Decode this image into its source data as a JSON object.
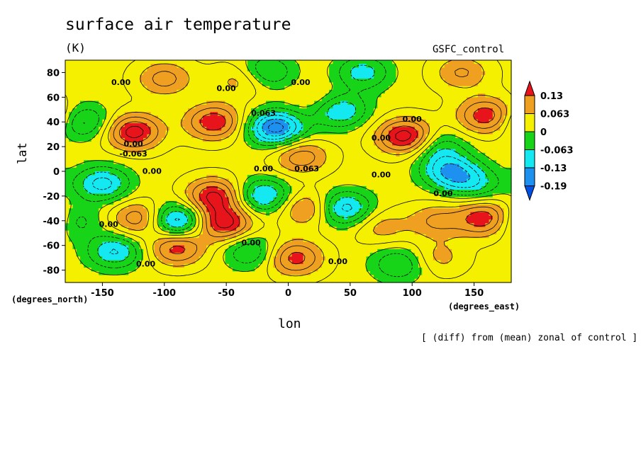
{
  "chart_data": {
    "type": "heatmap",
    "title": "surface air temperature",
    "units": "(K)",
    "source_label": "GSFC_control",
    "xlabel": "lon",
    "ylabel": "lat",
    "x_unit": "(degrees_east)",
    "y_unit": "(degrees_north)",
    "annotation": "[ (diff) from (mean) zonal of control ]",
    "xlim": [
      -180,
      180
    ],
    "ylim": [
      -90,
      90
    ],
    "x_ticks": [
      "-150",
      "-100",
      "-50",
      "0",
      "50",
      "100",
      "150"
    ],
    "y_ticks": [
      "80",
      "60",
      "40",
      "20",
      "0",
      "-20",
      "-40",
      "-60",
      "-80"
    ],
    "colorbar": {
      "labels": [
        "0.13",
        "0.063",
        "0",
        "-0.063",
        "-0.13",
        "-0.19"
      ],
      "colors": [
        "#e8141c",
        "#f0a020",
        "#f5f000",
        "#18d418",
        "#14e8f0",
        "#1e90f0",
        "#0050e6"
      ]
    },
    "contour_labels": [
      "0.00",
      "0.00",
      "0.00",
      "0.063",
      "0.00",
      "0.00",
      "0.00",
      "0.063",
      "0.00",
      "0.00",
      "0.00",
      "0.00",
      "0.00",
      "0.00",
      "0.00",
      "0.00",
      "-0.063"
    ],
    "features": [
      {
        "lon": -125,
        "lat": 32,
        "value": 0.16
      },
      {
        "lon": -60,
        "lat": 40,
        "value": 0.14
      },
      {
        "lon": -60,
        "lat": -20,
        "value": 0.15
      },
      {
        "lon": -52,
        "lat": -42,
        "value": 0.16
      },
      {
        "lon": 95,
        "lat": 28,
        "value": 0.17
      },
      {
        "lon": 160,
        "lat": 45,
        "value": 0.14
      },
      {
        "lon": 160,
        "lat": -38,
        "value": 0.15
      },
      {
        "lon": 5,
        "lat": -70,
        "value": 0.13
      },
      {
        "lon": -90,
        "lat": -62,
        "value": 0.13
      },
      {
        "lon": -120,
        "lat": -38,
        "value": 0.11
      },
      {
        "lon": 15,
        "lat": -30,
        "value": 0.1
      },
      {
        "lon": 10,
        "lat": 12,
        "value": 0.1
      },
      {
        "lon": -100,
        "lat": 75,
        "value": 0.09
      },
      {
        "lon": -35,
        "lat": 75,
        "value": 0.09
      },
      {
        "lon": 120,
        "lat": -40,
        "value": 0.08
      },
      {
        "lon": 140,
        "lat": 80,
        "value": 0.08
      },
      {
        "lon": 30,
        "lat": 55,
        "value": 0.06
      },
      {
        "lon": 75,
        "lat": -45,
        "value": 0.06
      },
      {
        "lon": -10,
        "lat": 35,
        "value": -0.2
      },
      {
        "lon": 40,
        "lat": 50,
        "value": -0.15
      },
      {
        "lon": 130,
        "lat": 0,
        "value": -0.14
      },
      {
        "lon": -90,
        "lat": -40,
        "value": -0.16
      },
      {
        "lon": -150,
        "lat": -10,
        "value": -0.13
      },
      {
        "lon": -20,
        "lat": -20,
        "value": -0.13
      },
      {
        "lon": 45,
        "lat": -30,
        "value": -0.14
      },
      {
        "lon": -20,
        "lat": 80,
        "value": -0.12
      },
      {
        "lon": 120,
        "lat": 20,
        "value": -0.08
      },
      {
        "lon": -165,
        "lat": 40,
        "value": -0.1
      },
      {
        "lon": 60,
        "lat": 80,
        "value": -0.1
      },
      {
        "lon": -140,
        "lat": -65,
        "value": -0.12
      },
      {
        "lon": 90,
        "lat": -75,
        "value": -0.09
      },
      {
        "lon": -30,
        "lat": -65,
        "value": -0.09
      },
      {
        "lon": 150,
        "lat": -10,
        "value": -0.09
      },
      {
        "lon": 120,
        "lat": -70,
        "value": 0.06
      },
      {
        "lon": -175,
        "lat": -40,
        "value": -0.08
      }
    ]
  }
}
